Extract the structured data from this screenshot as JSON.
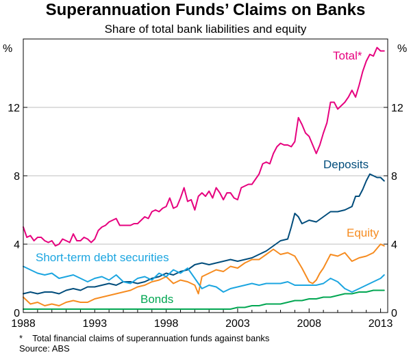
{
  "chart_data": {
    "type": "line",
    "title": "Superannuation Funds’ Claims on Banks",
    "subtitle": "Share of total bank liabilities and equity",
    "y_unit_left": "%",
    "y_unit_right": "%",
    "xlim": [
      1988,
      2013.5
    ],
    "ylim": [
      0,
      16
    ],
    "yticks": [
      0,
      4,
      8,
      12
    ],
    "ytick_labels": [
      "0",
      "4",
      "8",
      "12"
    ],
    "xticks": [
      1988,
      1993,
      1998,
      2003,
      2008,
      2013
    ],
    "xtick_labels": [
      "1988",
      "1993",
      "1998",
      "2003",
      "2008",
      "2013"
    ],
    "grid": "horizontal",
    "series": [
      {
        "name": "Total*",
        "color": "#e6007e",
        "x": [
          1988.0,
          1988.25,
          1988.5,
          1988.75,
          1989.0,
          1989.25,
          1989.5,
          1989.75,
          1990.0,
          1990.25,
          1990.5,
          1990.75,
          1991.0,
          1991.25,
          1991.5,
          1991.75,
          1992.0,
          1992.25,
          1992.5,
          1992.75,
          1993.0,
          1993.25,
          1993.5,
          1993.75,
          1994.0,
          1994.25,
          1994.5,
          1994.75,
          1995.0,
          1995.25,
          1995.5,
          1995.75,
          1996.0,
          1996.25,
          1996.5,
          1996.75,
          1997.0,
          1997.25,
          1997.5,
          1997.75,
          1998.0,
          1998.25,
          1998.5,
          1998.75,
          1999.0,
          1999.25,
          1999.5,
          1999.75,
          2000.0,
          2000.25,
          2000.5,
          2000.75,
          2001.0,
          2001.25,
          2001.5,
          2001.75,
          2002.0,
          2002.25,
          2002.5,
          2002.75,
          2003.0,
          2003.25,
          2003.5,
          2003.75,
          2004.0,
          2004.25,
          2004.5,
          2004.75,
          2005.0,
          2005.25,
          2005.5,
          2005.75,
          2006.0,
          2006.25,
          2006.5,
          2006.75,
          2007.0,
          2007.25,
          2007.5,
          2007.75,
          2008.0,
          2008.25,
          2008.5,
          2008.75,
          2009.0,
          2009.25,
          2009.5,
          2009.75,
          2010.0,
          2010.25,
          2010.5,
          2010.75,
          2011.0,
          2011.25,
          2011.5,
          2011.75,
          2012.0,
          2012.25,
          2012.5,
          2012.75,
          2013.0,
          2013.25
        ],
        "values": [
          5.0,
          4.4,
          4.5,
          4.2,
          4.4,
          4.4,
          4.2,
          4.1,
          4.2,
          3.9,
          4.0,
          4.3,
          4.2,
          4.1,
          4.6,
          4.2,
          4.2,
          4.4,
          4.3,
          4.1,
          4.3,
          4.8,
          5.0,
          5.1,
          5.3,
          5.4,
          5.5,
          5.1,
          5.1,
          5.1,
          5.1,
          5.2,
          5.2,
          5.4,
          5.6,
          5.5,
          5.9,
          6.0,
          5.9,
          6.1,
          6.2,
          6.7,
          6.1,
          6.2,
          6.7,
          7.3,
          6.5,
          6.6,
          6.0,
          6.8,
          7.0,
          6.8,
          7.1,
          6.7,
          7.3,
          7.0,
          6.6,
          7.0,
          7.0,
          6.7,
          6.6,
          7.3,
          7.4,
          7.5,
          7.5,
          7.8,
          8.1,
          8.7,
          8.8,
          8.7,
          9.3,
          9.7,
          9.9,
          9.8,
          9.8,
          9.7,
          10.0,
          11.4,
          11.0,
          10.5,
          10.3,
          9.8,
          9.3,
          9.8,
          10.5,
          11.1,
          12.3,
          12.3,
          11.9,
          12.1,
          12.3,
          12.6,
          13.0,
          12.6,
          13.3,
          14.1,
          14.7,
          15.1,
          15.0,
          15.5,
          15.3,
          15.3
        ]
      },
      {
        "name": "Deposits",
        "color": "#004c7b",
        "x": [
          1988.0,
          1988.5,
          1989.0,
          1989.5,
          1990.0,
          1990.5,
          1991.0,
          1991.5,
          1992.0,
          1992.5,
          1993.0,
          1993.5,
          1994.0,
          1994.5,
          1995.0,
          1995.5,
          1996.0,
          1996.5,
          1997.0,
          1997.5,
          1998.0,
          1998.5,
          1999.0,
          1999.5,
          2000.0,
          2000.5,
          2001.0,
          2001.5,
          2002.0,
          2002.5,
          2003.0,
          2003.5,
          2004.0,
          2004.5,
          2005.0,
          2005.5,
          2006.0,
          2006.5,
          2006.75,
          2007.0,
          2007.25,
          2007.5,
          2008.0,
          2008.5,
          2009.0,
          2009.5,
          2010.0,
          2010.5,
          2011.0,
          2011.25,
          2011.5,
          2011.75,
          2012.0,
          2012.25,
          2012.5,
          2012.75,
          2013.0,
          2013.25
        ],
        "values": [
          1.1,
          1.2,
          1.1,
          1.2,
          1.2,
          1.1,
          1.3,
          1.4,
          1.3,
          1.5,
          1.5,
          1.6,
          1.7,
          1.6,
          1.8,
          1.8,
          1.7,
          1.8,
          2.0,
          2.1,
          2.3,
          2.2,
          2.4,
          2.5,
          2.8,
          2.9,
          2.8,
          2.9,
          3.0,
          3.1,
          3.0,
          3.1,
          3.2,
          3.4,
          3.6,
          3.9,
          4.2,
          4.3,
          5.0,
          5.8,
          5.6,
          5.2,
          5.4,
          5.3,
          5.6,
          5.9,
          5.9,
          6.0,
          6.2,
          6.8,
          6.8,
          7.2,
          7.7,
          8.1,
          8.0,
          7.9,
          7.9,
          7.7
        ]
      },
      {
        "name": "Equity",
        "color": "#f68b1f",
        "x": [
          1988.0,
          1988.5,
          1989.0,
          1989.5,
          1990.0,
          1990.5,
          1991.0,
          1991.5,
          1992.0,
          1992.5,
          1993.0,
          1993.5,
          1994.0,
          1994.5,
          1995.0,
          1995.5,
          1996.0,
          1996.5,
          1997.0,
          1997.5,
          1998.0,
          1998.5,
          1999.0,
          1999.5,
          2000.0,
          2000.25,
          2000.5,
          2001.0,
          2001.5,
          2002.0,
          2002.5,
          2003.0,
          2003.5,
          2004.0,
          2004.5,
          2005.0,
          2005.5,
          2006.0,
          2006.5,
          2007.0,
          2007.5,
          2008.0,
          2008.25,
          2008.5,
          2008.75,
          2009.0,
          2009.5,
          2010.0,
          2010.5,
          2011.0,
          2011.5,
          2012.0,
          2012.5,
          2013.0,
          2013.25
        ],
        "values": [
          0.9,
          0.5,
          0.6,
          0.4,
          0.5,
          0.4,
          0.6,
          0.7,
          0.6,
          0.6,
          0.8,
          0.9,
          1.0,
          1.1,
          1.2,
          1.3,
          1.5,
          1.6,
          1.8,
          1.9,
          2.1,
          1.7,
          1.9,
          1.8,
          1.6,
          1.1,
          2.1,
          2.3,
          2.5,
          2.4,
          2.7,
          2.6,
          2.9,
          3.1,
          3.1,
          3.4,
          3.7,
          3.4,
          3.5,
          3.3,
          2.6,
          1.8,
          1.7,
          1.9,
          2.3,
          2.6,
          3.4,
          3.3,
          3.5,
          3.0,
          3.2,
          3.3,
          3.5,
          4.0,
          3.9
        ]
      },
      {
        "name": "Short-term debt securities",
        "color": "#1ba5e0",
        "x": [
          1988.0,
          1988.5,
          1989.0,
          1989.5,
          1990.0,
          1990.5,
          1991.0,
          1991.5,
          1992.0,
          1992.5,
          1993.0,
          1993.5,
          1994.0,
          1994.5,
          1995.0,
          1995.5,
          1996.0,
          1996.5,
          1997.0,
          1997.5,
          1998.0,
          1998.5,
          1999.0,
          1999.5,
          2000.0,
          2000.5,
          2001.0,
          2001.5,
          2002.0,
          2002.5,
          2003.0,
          2003.5,
          2004.0,
          2004.5,
          2005.0,
          2005.5,
          2006.0,
          2006.5,
          2007.0,
          2007.5,
          2008.0,
          2008.5,
          2009.0,
          2009.5,
          2010.0,
          2010.5,
          2011.0,
          2011.5,
          2012.0,
          2012.5,
          2013.0,
          2013.25
        ],
        "values": [
          2.7,
          2.5,
          2.3,
          2.2,
          2.3,
          2.0,
          2.1,
          2.2,
          2.0,
          1.8,
          2.0,
          2.1,
          1.9,
          2.2,
          1.8,
          1.7,
          2.0,
          2.1,
          1.9,
          2.3,
          2.1,
          2.5,
          2.3,
          2.6,
          2.0,
          1.4,
          1.6,
          1.5,
          1.2,
          1.4,
          1.5,
          1.6,
          1.7,
          1.6,
          1.7,
          1.7,
          1.7,
          1.8,
          1.6,
          1.6,
          1.6,
          1.6,
          1.7,
          2.0,
          1.8,
          1.4,
          1.2,
          1.4,
          1.6,
          1.8,
          2.0,
          2.2
        ]
      },
      {
        "name": "Bonds",
        "color": "#00a651",
        "x": [
          1988.0,
          1988.5,
          1989.0,
          1989.5,
          1990.0,
          1990.5,
          1991.0,
          1991.5,
          1992.0,
          1992.5,
          1993.0,
          1993.5,
          1994.0,
          1994.5,
          1995.0,
          1995.5,
          1996.0,
          1996.5,
          1997.0,
          1997.5,
          1998.0,
          1998.5,
          1999.0,
          1999.5,
          2000.0,
          2000.5,
          2001.0,
          2001.5,
          2002.0,
          2002.5,
          2003.0,
          2003.5,
          2004.0,
          2004.5,
          2005.0,
          2005.5,
          2006.0,
          2006.5,
          2007.0,
          2007.5,
          2008.0,
          2008.5,
          2009.0,
          2009.5,
          2010.0,
          2010.5,
          2011.0,
          2011.5,
          2012.0,
          2012.5,
          2013.0,
          2013.25
        ],
        "values": [
          0.2,
          0.2,
          0.2,
          0.2,
          0.2,
          0.2,
          0.2,
          0.2,
          0.2,
          0.2,
          0.2,
          0.2,
          0.2,
          0.2,
          0.2,
          0.2,
          0.2,
          0.2,
          0.2,
          0.2,
          0.2,
          0.2,
          0.2,
          0.2,
          0.2,
          0.2,
          0.2,
          0.2,
          0.2,
          0.2,
          0.3,
          0.3,
          0.4,
          0.4,
          0.5,
          0.5,
          0.5,
          0.6,
          0.7,
          0.7,
          0.8,
          0.8,
          0.9,
          0.9,
          1.0,
          1.1,
          1.1,
          1.2,
          1.2,
          1.3,
          1.3,
          1.3
        ]
      }
    ],
    "footnote": "*    Total financial claims of superannuation funds against banks",
    "source": "Source: ABS"
  }
}
